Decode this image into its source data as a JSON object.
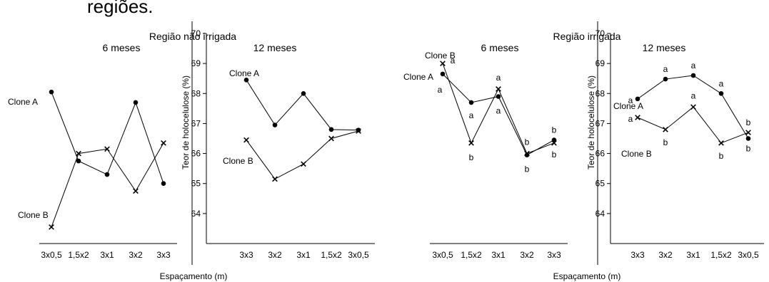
{
  "heading_fragment": "regiões.",
  "chart_data": [
    {
      "type": "line",
      "region_title": "Região não irrigada",
      "panel_title": "6 meses",
      "categories": [
        "3x0,5",
        "1,5x2",
        "3x1",
        "3x2",
        "3x3"
      ],
      "ylim": [
        63,
        70
      ],
      "yticks": [],
      "ylabel": "",
      "series": [
        {
          "name": "Clone A",
          "marker": "circle",
          "values": [
            68.05,
            65.75,
            65.3,
            67.7,
            65.0
          ],
          "letters": []
        },
        {
          "name": "Clone B",
          "marker": "x",
          "values": [
            63.55,
            66.0,
            66.15,
            64.75,
            66.35
          ],
          "letters": []
        }
      ]
    },
    {
      "type": "line",
      "region_title": "",
      "panel_title": "12 meses",
      "categories": [
        "3x3",
        "3x2",
        "3x1",
        "1,5x2",
        "3x0,5"
      ],
      "ylim": [
        63,
        70
      ],
      "yticks": [
        "64",
        "65",
        "66",
        "67",
        "68",
        "69",
        "70"
      ],
      "ylabel": "Teor de holocelulose (%)",
      "series": [
        {
          "name": "Clone A",
          "marker": "circle",
          "values": [
            68.45,
            66.95,
            68.0,
            66.8,
            66.78
          ],
          "letters": []
        },
        {
          "name": "Clone B",
          "marker": "x",
          "values": [
            66.45,
            65.15,
            65.65,
            66.5,
            66.75
          ],
          "letters": []
        }
      ]
    },
    {
      "type": "line",
      "region_title": "Região irrigada",
      "panel_title": "6 meses",
      "categories": [
        "3x0,5",
        "1,5x2",
        "3x1",
        "3x2",
        "3x3"
      ],
      "ylim": [
        63,
        70
      ],
      "yticks": [],
      "ylabel": "",
      "series": [
        {
          "name": "Clone A",
          "marker": "circle",
          "values": [
            68.65,
            67.7,
            67.9,
            65.95,
            66.45
          ],
          "letters": [
            "a",
            "a",
            "a",
            "b",
            "b"
          ]
        },
        {
          "name": "Clone B",
          "marker": "x",
          "values": [
            69.0,
            66.35,
            68.15,
            66.0,
            66.35
          ],
          "letters": [
            "a",
            "b",
            "a",
            "b",
            "b"
          ]
        }
      ]
    },
    {
      "type": "line",
      "region_title": "",
      "panel_title": "12 meses",
      "categories": [
        "3x3",
        "3x2",
        "3x1",
        "1,5x2",
        "3x0,5"
      ],
      "ylim": [
        63,
        70
      ],
      "yticks": [
        "64",
        "65",
        "66",
        "67",
        "68",
        "69",
        "70"
      ],
      "ylabel": "Teor de holocelulose (%)",
      "series": [
        {
          "name": "Clone A",
          "marker": "circle",
          "values": [
            67.82,
            68.48,
            68.6,
            68.0,
            66.5
          ],
          "letters": [
            "a",
            "a",
            "a",
            "a",
            "b"
          ]
        },
        {
          "name": "Clone B",
          "marker": "x",
          "values": [
            67.2,
            66.8,
            67.55,
            66.35,
            66.7
          ],
          "letters": [
            "a",
            "b",
            "a",
            "b",
            "b"
          ]
        }
      ]
    }
  ],
  "xlabels": [
    "Espaçamento (m)",
    "Espaçamento (m)"
  ]
}
